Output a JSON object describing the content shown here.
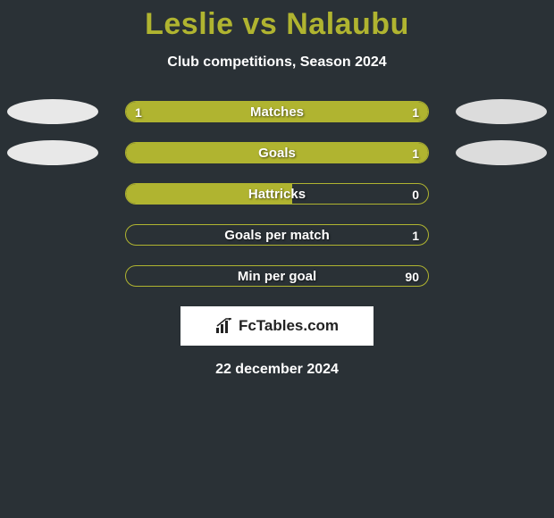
{
  "title": "Leslie vs Nalaubu",
  "subtitle": "Club competitions, Season 2024",
  "date": "22 december 2024",
  "brand": "FcTables.com",
  "colors": {
    "background": "#2a3136",
    "accent": "#b0b430",
    "ellipse_left": "#e8e8e8",
    "ellipse_right": "#dcdcdc",
    "text": "#ffffff",
    "bar_border": "#b0b430"
  },
  "stats": [
    {
      "label": "Matches",
      "left_value": "1",
      "right_value": "1",
      "left_pct": 50,
      "right_pct": 50,
      "show_left_ellipse": true,
      "show_right_ellipse": true
    },
    {
      "label": "Goals",
      "left_value": "",
      "right_value": "1",
      "left_pct": 50,
      "right_pct": 50,
      "show_left_ellipse": true,
      "show_right_ellipse": true
    },
    {
      "label": "Hattricks",
      "left_value": "",
      "right_value": "0",
      "left_pct": 55,
      "right_pct": 0,
      "show_left_ellipse": false,
      "show_right_ellipse": false
    },
    {
      "label": "Goals per match",
      "left_value": "",
      "right_value": "1",
      "left_pct": 0,
      "right_pct": 0,
      "show_left_ellipse": false,
      "show_right_ellipse": false
    },
    {
      "label": "Min per goal",
      "left_value": "",
      "right_value": "90",
      "left_pct": 0,
      "right_pct": 0,
      "show_left_ellipse": false,
      "show_right_ellipse": false
    }
  ]
}
